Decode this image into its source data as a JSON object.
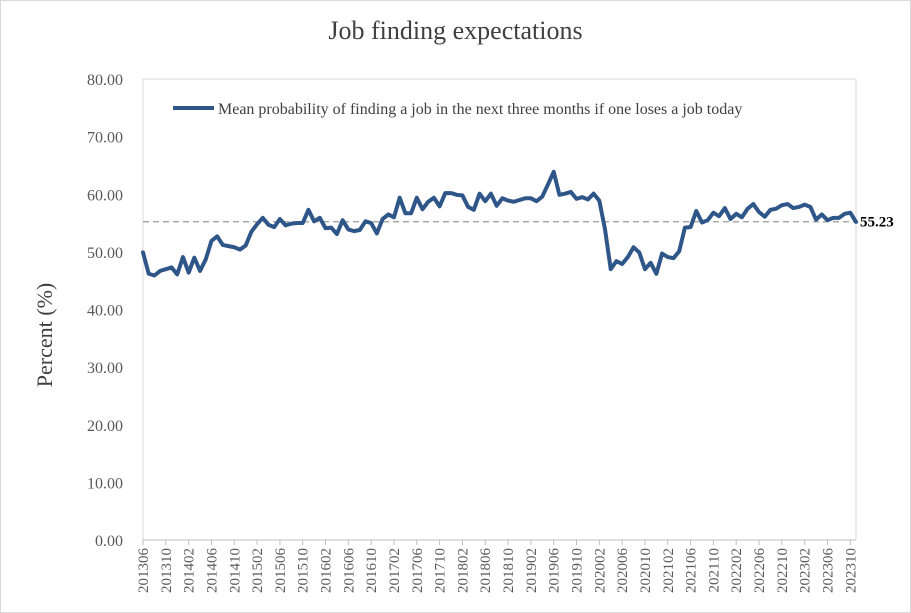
{
  "chart_data": {
    "type": "line",
    "title": "Job finding expectations",
    "xlabel": "",
    "ylabel": "Percent (%)",
    "ylim": [
      0,
      80
    ],
    "yticks": [
      "0.00",
      "10.00",
      "20.00",
      "30.00",
      "40.00",
      "50.00",
      "60.00",
      "70.00",
      "80.00"
    ],
    "xticks": [
      "201306",
      "201310",
      "201402",
      "201406",
      "201410",
      "201502",
      "201506",
      "201510",
      "201602",
      "201606",
      "201610",
      "201702",
      "201706",
      "201710",
      "201802",
      "201806",
      "201810",
      "201902",
      "201906",
      "201910",
      "202002",
      "202006",
      "202010",
      "202102",
      "202106",
      "202110",
      "202202",
      "202206",
      "202210",
      "202302",
      "202306",
      "202310"
    ],
    "legend_position": "top",
    "grid": false,
    "colors": {
      "series": "#2f5689",
      "reference": "#999999"
    },
    "reference_line": {
      "value": 55.23,
      "label": "55.23",
      "style": "dashed"
    },
    "series": [
      {
        "name": "Mean probability of finding a job in the next three months if one loses a job today",
        "start": "201306",
        "frequency": "monthly",
        "values": [
          49.9,
          46.2,
          45.9,
          46.7,
          47.0,
          47.3,
          46.1,
          49.1,
          46.4,
          49.0,
          46.7,
          48.7,
          51.9,
          52.7,
          51.2,
          51.0,
          50.8,
          50.4,
          51.1,
          53.5,
          54.8,
          55.9,
          54.7,
          54.3,
          55.7,
          54.6,
          54.9,
          55.0,
          55.0,
          57.3,
          55.3,
          55.9,
          54.1,
          54.2,
          53.1,
          55.5,
          53.9,
          53.6,
          53.8,
          55.3,
          55.0,
          53.2,
          55.7,
          56.5,
          56.0,
          59.4,
          56.7,
          56.7,
          59.4,
          57.4,
          58.7,
          59.4,
          57.9,
          60.2,
          60.2,
          59.9,
          59.8,
          57.8,
          57.3,
          60.1,
          58.8,
          60.1,
          58.0,
          59.3,
          58.9,
          58.7,
          59.0,
          59.3,
          59.3,
          58.8,
          59.6,
          61.7,
          63.9,
          59.9,
          60.1,
          60.4,
          59.2,
          59.5,
          59.1,
          60.1,
          58.9,
          53.9,
          47.0,
          48.4,
          47.9,
          49.1,
          50.8,
          49.9,
          47.0,
          48.1,
          46.2,
          49.7,
          49.1,
          48.9,
          50.1,
          54.2,
          54.3,
          57.1,
          55.1,
          55.5,
          56.8,
          56.2,
          57.6,
          55.7,
          56.6,
          56.0,
          57.5,
          58.3,
          56.9,
          56.1,
          57.3,
          57.5,
          58.1,
          58.3,
          57.6,
          57.8,
          58.2,
          57.8,
          55.6,
          56.5,
          55.5,
          55.9,
          55.9,
          56.6,
          56.8,
          55.2
        ]
      }
    ]
  }
}
